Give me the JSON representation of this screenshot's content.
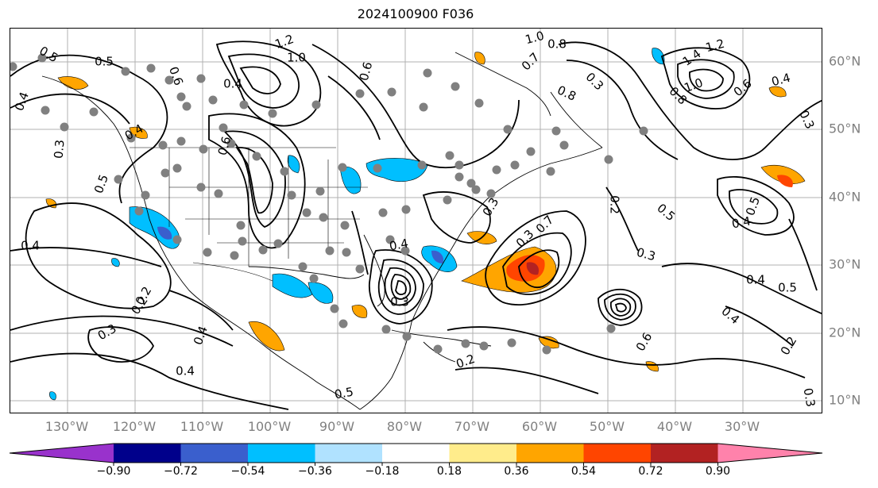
{
  "title": "2024100900 F036",
  "map": {
    "lon_labels": [
      "130°W",
      "120°W",
      "110°W",
      "100°W",
      "90°W",
      "80°W",
      "70°W",
      "60°W",
      "50°W",
      "40°W",
      "30°W"
    ],
    "lat_labels": [
      "60°N",
      "50°N",
      "40°N",
      "30°N",
      "20°N",
      "10°N"
    ],
    "contour_labels": [
      "0.5",
      "0.5",
      "0.4",
      "0.3",
      "0.5",
      "0.4",
      "0.6",
      "1.2",
      "1.0",
      "0.4",
      "0.6",
      "1.0",
      "0.8",
      "0.7",
      "0.8",
      "0.3",
      "1.4",
      "1.2",
      "1.0",
      "0.8",
      "0.6",
      "0.4",
      "0.3",
      "0.6",
      "0.3",
      "0.5",
      "0.3",
      "0.4",
      "0.5",
      "0.4",
      "0.4",
      "0.3",
      "0.4",
      "0.2",
      "0.4",
      "0.2",
      "0.3",
      "0.2",
      "0.5",
      "0.4",
      "0.3",
      "0.7",
      "0.6",
      "0.2",
      "0.5",
      "0.4",
      "0.3",
      "0.2"
    ]
  },
  "colorbar": {
    "colors": [
      "#9932cc",
      "#00008b",
      "#3a5fcd",
      "#00bfff",
      "#b0e2ff",
      "#ffffff",
      "#ffec8b",
      "#ffa500",
      "#ff4500",
      "#b22222",
      "#ff82ab"
    ],
    "tick_labels": [
      "−0.90",
      "−0.72",
      "−0.54",
      "−0.36",
      "−0.18",
      "0.18",
      "0.36",
      "0.54",
      "0.72",
      "0.90"
    ]
  }
}
